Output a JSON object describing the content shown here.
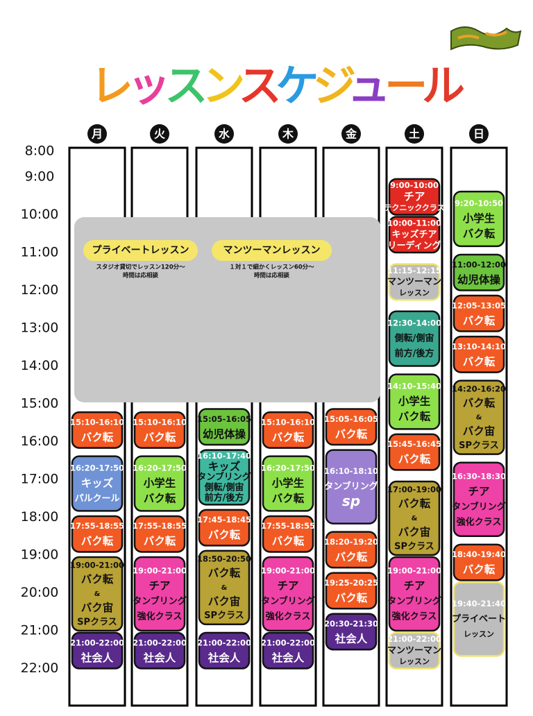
{
  "title": "レッスンスケジュール",
  "title_colors": [
    "#f39a1e",
    "#e8409a",
    "#3cc46a",
    "#f0c419",
    "#e8342a",
    "#2a9be0",
    "#f0b41e",
    "#8b3fc4",
    "#f07a1e",
    "#e23a2a"
  ],
  "times": [
    "8:00",
    "9:00",
    "10:00",
    "11:00",
    "12:00",
    "13:00",
    "14:00",
    "15:00",
    "16:00",
    "17:00",
    "18:00",
    "19:00",
    "20:00",
    "21:00",
    "22:00"
  ],
  "private": [
    {
      "label": "プライベートレッスン",
      "notes": [
        "スタジオ貸切でレッスン120分〜",
        "時間は応相談"
      ]
    },
    {
      "label": "マンツーマンレッスン",
      "notes": [
        "１対１で細かくレッスン60分〜",
        "時間は応相談"
      ]
    }
  ],
  "schedule": [
    {
      "day": "月",
      "events": [
        {
          "time": "15:10-16:10",
          "lines": [
            "バク転"
          ],
          "color": "#f25a24"
        },
        {
          "time": "16:20-17:50",
          "lines": [
            "キッズ",
            "パルクール"
          ],
          "color": "#6f93d6"
        },
        {
          "time": "17:55-18:55",
          "lines": [
            "バク転"
          ],
          "color": "#f25a24"
        },
        {
          "time": "19:00-21:00",
          "lines": [
            "バク転",
            "&",
            "バク宙",
            "SPクラス"
          ],
          "color": "#b9a236"
        },
        {
          "time": "21:00-22:00",
          "lines": [
            "社会人"
          ],
          "color": "#5a2a8c"
        }
      ]
    },
    {
      "day": "火",
      "events": [
        {
          "time": "15:10-16:10",
          "lines": [
            "バク転"
          ],
          "color": "#f25a24"
        },
        {
          "time": "16:20-17:50",
          "lines": [
            "小学生",
            "バク転"
          ],
          "color": "#8ee04a"
        },
        {
          "time": "17:55-18:55",
          "lines": [
            "バク転"
          ],
          "color": "#f25a24"
        },
        {
          "time": "19:00-21:00",
          "lines": [
            "チア",
            "タンブリング",
            "強化クラス"
          ],
          "color": "#ee42a6"
        },
        {
          "time": "21:00-22:00",
          "lines": [
            "社会人"
          ],
          "color": "#5a2a8c"
        }
      ]
    },
    {
      "day": "水",
      "events": [
        {
          "time": "15:05-16:05",
          "lines": [
            "幼児体操"
          ],
          "color": "#6cc43e"
        },
        {
          "time": "16:10-17:40",
          "lines": [
            "キッズ",
            "タンブリング",
            "側転/側宙",
            "前方/後方"
          ],
          "color": "#3fb8a0"
        },
        {
          "time": "17:45-18:45",
          "lines": [
            "バク転"
          ],
          "color": "#f25a24"
        },
        {
          "time": "18:50-20:50",
          "lines": [
            "バク転",
            "&",
            "バク宙",
            "SPクラス"
          ],
          "color": "#b9a236"
        },
        {
          "time": "21:00-22:00",
          "lines": [
            "社会人"
          ],
          "color": "#5a2a8c"
        }
      ]
    },
    {
      "day": "木",
      "events": [
        {
          "time": "15:10-16:10",
          "lines": [
            "バク転"
          ],
          "color": "#f25a24"
        },
        {
          "time": "16:20-17:50",
          "lines": [
            "小学生",
            "バク転"
          ],
          "color": "#8ee04a"
        },
        {
          "time": "17:55-18:55",
          "lines": [
            "バク転"
          ],
          "color": "#f25a24"
        },
        {
          "time": "19:00-21:00",
          "lines": [
            "チア",
            "タンブリング",
            "強化クラス"
          ],
          "color": "#ee42a6"
        },
        {
          "time": "21:00-22:00",
          "lines": [
            "社会人"
          ],
          "color": "#5a2a8c"
        }
      ]
    },
    {
      "day": "金",
      "events": [
        {
          "time": "15:05-16:05",
          "lines": [
            "バク転"
          ],
          "color": "#f25a24"
        },
        {
          "time": "16:10-18:10",
          "lines": [
            "タンブリング",
            "sp"
          ],
          "color": "#9b80d2"
        },
        {
          "time": "18:20-19:20",
          "lines": [
            "バク転"
          ],
          "color": "#f25a24"
        },
        {
          "time": "19:25-20:25",
          "lines": [
            "バク転"
          ],
          "color": "#f25a24"
        },
        {
          "time": "20:30-21:30",
          "lines": [
            "社会人"
          ],
          "color": "#5a2a8c"
        }
      ]
    },
    {
      "day": "土",
      "events": [
        {
          "time": "9:00-10:00",
          "lines": [
            "チア",
            "テクニッククラス"
          ],
          "color": "#e22a22"
        },
        {
          "time": "10:00-11:00",
          "lines": [
            "キッズチア",
            "リーディング"
          ],
          "color": "#e22a22"
        },
        {
          "time": "11:15-12:15",
          "lines": [
            "マンツーマン",
            "レッスン"
          ],
          "color": "#bdbdbd"
        },
        {
          "time": "12:30-14:00",
          "lines": [
            "側転/側宙",
            "前方/後方"
          ],
          "color": "#3aa890"
        },
        {
          "time": "14:10-15:40",
          "lines": [
            "小学生",
            "バク転"
          ],
          "color": "#8ee04a"
        },
        {
          "time": "15:45-16:45",
          "lines": [
            "バク転"
          ],
          "color": "#f25a24"
        },
        {
          "time": "17:00-19:00",
          "lines": [
            "バク転",
            "&",
            "バク宙",
            "SPクラス"
          ],
          "color": "#b9a236"
        },
        {
          "time": "19:00-21:00",
          "lines": [
            "チア",
            "タンブリング",
            "強化クラス"
          ],
          "color": "#ee42a6"
        },
        {
          "time": "21:00-22:00",
          "lines": [
            "マンツーマン",
            "レッスン"
          ],
          "color": "#bdbdbd"
        }
      ]
    },
    {
      "day": "日",
      "events": [
        {
          "time": "9:20-10:50",
          "lines": [
            "小学生",
            "バク転"
          ],
          "color": "#8ee04a"
        },
        {
          "time": "11:00-12:00",
          "lines": [
            "幼児体操"
          ],
          "color": "#6cc43e"
        },
        {
          "time": "12:05-13:05",
          "lines": [
            "バク転"
          ],
          "color": "#f25a24"
        },
        {
          "time": "13:10-14:10",
          "lines": [
            "バク転"
          ],
          "color": "#f25a24"
        },
        {
          "time": "14:20-16:20",
          "lines": [
            "バク転",
            "&",
            "バク宙",
            "SPクラス"
          ],
          "color": "#b9a236"
        },
        {
          "time": "16:30-18:30",
          "lines": [
            "チア",
            "タンブリング",
            "強化クラス"
          ],
          "color": "#ee42a6"
        },
        {
          "time": "18:40-19:40",
          "lines": [
            "バク転"
          ],
          "color": "#f25a24"
        },
        {
          "time": "19:40-21:40",
          "lines": [
            "プライベート",
            "レッスン"
          ],
          "color": "#bdbdbd"
        }
      ]
    }
  ]
}
